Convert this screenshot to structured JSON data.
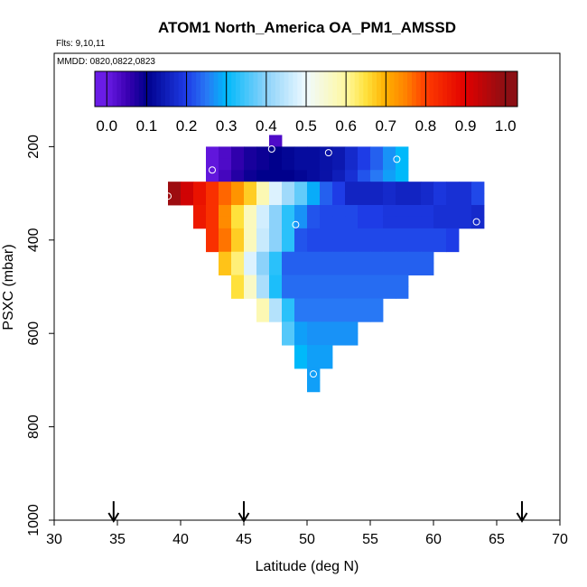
{
  "chart_data": {
    "type": "heatmap",
    "title": "ATOM1 North_America OA_PM1_AMSSD",
    "flights_note": "Flts: 9,10,11",
    "dates_note": "MMDD: 0820,0822,0823",
    "xlabel": "Latitude (deg N)",
    "ylabel": "PSXC (mbar)",
    "xlim": [
      30,
      70
    ],
    "ylim": [
      1000,
      0
    ],
    "x_ticks": [
      30,
      35,
      40,
      45,
      50,
      55,
      60,
      65,
      70
    ],
    "y_ticks": [
      200,
      400,
      600,
      800,
      1000
    ],
    "colorbar": {
      "ticks": [
        "0.0",
        "0.1",
        "0.2",
        "0.3",
        "0.4",
        "0.5",
        "0.6",
        "0.7",
        "0.8",
        "0.9",
        "1.0"
      ],
      "range": [
        -0.03,
        1.03
      ]
    },
    "cell_size": {
      "lat": 1,
      "pressure": 25
    },
    "rows": [
      {
        "p": 175,
        "lat_start": 47,
        "values": [
          0.03
        ]
      },
      {
        "p": 200,
        "lat_start": 42,
        "values": [
          0.01,
          0.03,
          0.06,
          0.08,
          0.09,
          0.1,
          0.11,
          0.12,
          0.12,
          0.13,
          0.14,
          0.17,
          0.2,
          0.23,
          0.27,
          0.3
        ]
      },
      {
        "p": 225,
        "lat_start": 42,
        "values": [
          0.01,
          0.03,
          0.06,
          0.08,
          0.09,
          0.1,
          0.11,
          0.12,
          0.12,
          0.13,
          0.14,
          0.17,
          0.2,
          0.23,
          0.27,
          0.3
        ]
      },
      {
        "p": 250,
        "lat_start": 42,
        "values": [
          0.01,
          0.04,
          0.07,
          0.09,
          0.1,
          0.1,
          0.1,
          0.11,
          0.12,
          0.13,
          0.15,
          0.18,
          0.22,
          0.25,
          0.28,
          0.3
        ]
      },
      {
        "p": 275,
        "lat_start": 39,
        "values": [
          0.98,
          0.92,
          0.87,
          0.82,
          0.77,
          0.73,
          0.67,
          0.58,
          0.48,
          0.42,
          0.37,
          0.29,
          0.23,
          0.2,
          0.16,
          0.16,
          0.16,
          0.17,
          0.16,
          0.16,
          0.17,
          0.19,
          0.18,
          0.18,
          0.21
        ]
      },
      {
        "p": 300,
        "lat_start": 39,
        "values": [
          0.98,
          0.92,
          0.87,
          0.82,
          0.77,
          0.73,
          0.67,
          0.58,
          0.48,
          0.42,
          0.37,
          0.29,
          0.23,
          0.2,
          0.16,
          0.16,
          0.16,
          0.17,
          0.16,
          0.16,
          0.17,
          0.19,
          0.18,
          0.18,
          0.21
        ]
      },
      {
        "p": 325,
        "lat_start": 41,
        "values": [
          0.86,
          0.82,
          0.74,
          0.65,
          0.57,
          0.47,
          0.4,
          0.33,
          0.27,
          0.22,
          0.21,
          0.21,
          0.21,
          0.2,
          0.2,
          0.19,
          0.19,
          0.19,
          0.19,
          0.18,
          0.18,
          0.18,
          0.17
        ]
      },
      {
        "p": 350,
        "lat_start": 41,
        "values": [
          0.86,
          0.82,
          0.74,
          0.65,
          0.57,
          0.47,
          0.4,
          0.33,
          0.27,
          0.22,
          0.21,
          0.21,
          0.21,
          0.2,
          0.2,
          0.19,
          0.19,
          0.19,
          0.19,
          0.18,
          0.18,
          0.18,
          0.17
        ]
      },
      {
        "p": 375,
        "lat_start": 42,
        "values": [
          0.82,
          0.76,
          0.67,
          0.57,
          0.46,
          0.4,
          0.33,
          0.22,
          0.21,
          0.21,
          0.21,
          0.21,
          0.21,
          0.21,
          0.21,
          0.21,
          0.21,
          0.21,
          0.21,
          0.2
        ]
      },
      {
        "p": 400,
        "lat_start": 42,
        "values": [
          0.82,
          0.76,
          0.67,
          0.57,
          0.46,
          0.4,
          0.33,
          0.22,
          0.21,
          0.21,
          0.21,
          0.21,
          0.21,
          0.21,
          0.21,
          0.21,
          0.21,
          0.21,
          0.21,
          0.2
        ]
      },
      {
        "p": 425,
        "lat_start": 43,
        "values": [
          0.68,
          0.62,
          0.48,
          0.4,
          0.33,
          0.23,
          0.23,
          0.23,
          0.23,
          0.23,
          0.23,
          0.23,
          0.23,
          0.23,
          0.23,
          0.23,
          0.23
        ]
      },
      {
        "p": 450,
        "lat_start": 43,
        "values": [
          0.68,
          0.62,
          0.48,
          0.4,
          0.33,
          0.23,
          0.23,
          0.23,
          0.23,
          0.23,
          0.23,
          0.23,
          0.23,
          0.23,
          0.23,
          0.23,
          0.23
        ]
      },
      {
        "p": 475,
        "lat_start": 44,
        "values": [
          0.65,
          0.56,
          0.43,
          0.32,
          0.24,
          0.24,
          0.24,
          0.24,
          0.24,
          0.24,
          0.24,
          0.24,
          0.24,
          0.24
        ]
      },
      {
        "p": 500,
        "lat_start": 44,
        "values": [
          0.65,
          0.56,
          0.43,
          0.32,
          0.24,
          0.24,
          0.24,
          0.24,
          0.24,
          0.24,
          0.24,
          0.24,
          0.24,
          0.24
        ]
      },
      {
        "p": 525,
        "lat_start": 46,
        "values": [
          0.58,
          0.44,
          0.33,
          0.25,
          0.25,
          0.25,
          0.25,
          0.25,
          0.25,
          0.25
        ]
      },
      {
        "p": 550,
        "lat_start": 46,
        "values": [
          0.58,
          0.44,
          0.33,
          0.25,
          0.25,
          0.25,
          0.25,
          0.25,
          0.25,
          0.25
        ]
      },
      {
        "p": 575,
        "lat_start": 48,
        "values": [
          0.36,
          0.28,
          0.27,
          0.27,
          0.27,
          0.27
        ]
      },
      {
        "p": 600,
        "lat_start": 48,
        "values": [
          0.36,
          0.28,
          0.27,
          0.27,
          0.27,
          0.27
        ]
      },
      {
        "p": 625,
        "lat_start": 49,
        "values": [
          0.3,
          0.28,
          0.28
        ]
      },
      {
        "p": 650,
        "lat_start": 49,
        "values": [
          0.3,
          0.28,
          0.28
        ]
      },
      {
        "p": 675,
        "lat_start": 50,
        "values": [
          0.28
        ]
      },
      {
        "p": 700,
        "lat_start": 50,
        "values": [
          0.28
        ]
      }
    ],
    "points": [
      {
        "lat": 47.2,
        "p": 205
      },
      {
        "lat": 51.7,
        "p": 213
      },
      {
        "lat": 57.1,
        "p": 227
      },
      {
        "lat": 42.5,
        "p": 250
      },
      {
        "lat": 39.0,
        "p": 306
      },
      {
        "lat": 49.1,
        "p": 367
      },
      {
        "lat": 63.4,
        "p": 361
      },
      {
        "lat": 50.5,
        "p": 687
      }
    ],
    "arrow_latitudes": [
      34.7,
      45.0,
      67.0
    ]
  }
}
